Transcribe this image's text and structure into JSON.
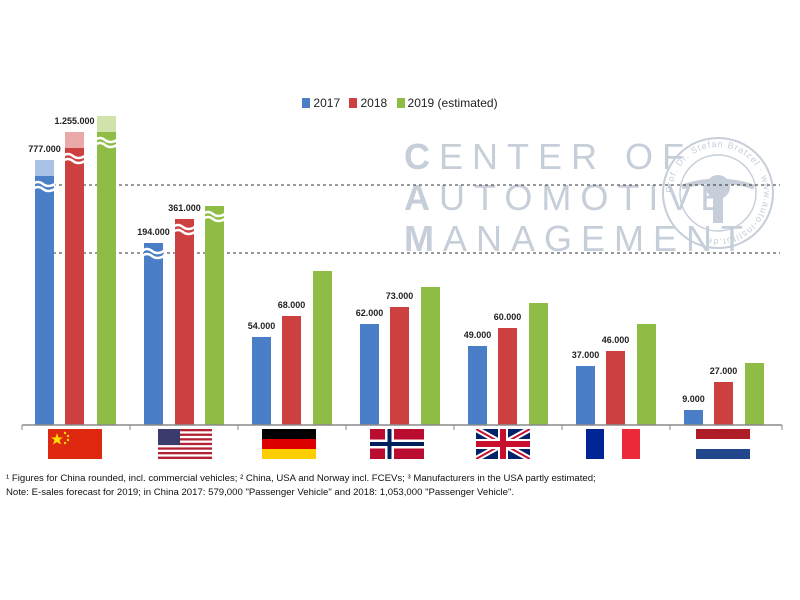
{
  "chart_data": {
    "type": "bar",
    "categories": [
      "China",
      "USA",
      "Germany",
      "Norway",
      "UK",
      "France",
      "Netherlands"
    ],
    "series": [
      {
        "name": "2017",
        "values": [
          777000,
          194000,
          54000,
          62000,
          49000,
          37000,
          9000
        ],
        "color": "#4a7ec7"
      },
      {
        "name": "2018",
        "values": [
          1255000,
          361000,
          68000,
          73000,
          60000,
          46000,
          27000
        ],
        "color": "#cd4040"
      },
      {
        "name": "2019 (estimated)",
        "values": [
          null,
          null,
          null,
          null,
          null,
          null,
          null
        ],
        "color": "#8fbc44"
      }
    ],
    "data_labels": [
      [
        "777.000",
        "194.000",
        "54.000",
        "62.000",
        "49.000",
        "37.000",
        "9.000"
      ],
      [
        "1.255.000",
        "361.000",
        "68.000",
        "73.000",
        "60.000",
        "46.000",
        "27.000"
      ]
    ],
    "axis_breaks": "broken bars for China and USA (wavy break marks)",
    "legend_position": "top-center",
    "grid": false
  },
  "legend": [
    {
      "label": "2017",
      "color": "#4a7ec7"
    },
    {
      "label": "2018",
      "color": "#cd4040"
    },
    {
      "label": "2019 (estimated)",
      "color": "#8fbc44"
    }
  ],
  "watermark": {
    "line1_cap": "C",
    "line1_rest": "ENTER OF",
    "line2_cap": "A",
    "line2_rest": "UTOMOTIVE",
    "line3_cap": "M",
    "line3_rest": "ANAGEMENT"
  },
  "seal_text": "Prof. Dr. Stefan Bratzel · www.auto-institut.de",
  "flags": [
    "china-flag",
    "usa-flag",
    "germany-flag",
    "norway-flag",
    "uk-flag",
    "france-flag",
    "netherlands-flag"
  ],
  "footnote": {
    "line1": "¹ Figures for China rounded, incl. commercial vehicles; ² China, USA and Norway incl. FCEVs; ³ Manufacturers in the USA partly estimated;",
    "line2": "Note: E-sales forecast for 2019; in China 2017: 579,000 \"Passenger Vehicle\" and 2018: 1,053,000 \"Passenger Vehicle\"."
  },
  "colors": {
    "blue": "#4a7ec7",
    "red": "#cd4040",
    "green": "#8fbc44"
  }
}
